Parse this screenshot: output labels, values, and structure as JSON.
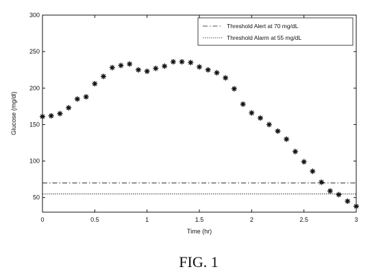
{
  "chart_data": {
    "type": "scatter",
    "title": "",
    "xlabel": "Time (hr)",
    "ylabel": "Glucose (mg/dl)",
    "xlim": [
      0,
      3
    ],
    "ylim": [
      30,
      300
    ],
    "xticks": [
      0,
      0.5,
      1,
      1.5,
      2,
      2.5,
      3
    ],
    "xtick_labels": [
      "0",
      "0.5",
      "1",
      "1.5",
      "2",
      "2.5",
      "3"
    ],
    "yticks": [
      50,
      100,
      150,
      200,
      250,
      300
    ],
    "ytick_labels": [
      "50",
      "100",
      "150",
      "200",
      "250",
      "300"
    ],
    "grid": false,
    "legend_position": "top-right",
    "series": [
      {
        "marker": "asterisk",
        "color": "#111111",
        "x": [
          0,
          0.083,
          0.167,
          0.25,
          0.333,
          0.417,
          0.5,
          0.583,
          0.667,
          0.75,
          0.833,
          0.917,
          1.0,
          1.083,
          1.167,
          1.25,
          1.333,
          1.417,
          1.5,
          1.583,
          1.667,
          1.75,
          1.833,
          1.917,
          2.0,
          2.083,
          2.167,
          2.25,
          2.333,
          2.417,
          2.5,
          2.583,
          2.667,
          2.75,
          2.833,
          2.917,
          3.0
        ],
        "y": [
          161,
          162,
          165,
          173,
          185,
          188,
          206,
          216,
          228,
          231,
          233,
          225,
          223,
          227,
          230,
          236,
          236,
          235,
          229,
          225,
          221,
          214,
          199,
          178,
          166,
          159,
          150,
          141,
          130,
          113,
          99,
          86,
          71,
          59,
          54,
          45,
          38
        ]
      }
    ],
    "threshold_lines": [
      {
        "name": "Threshold Alert at 70 mg/dL",
        "y": 70,
        "style": "dash-dot",
        "color": "#111111"
      },
      {
        "name": "Threshold Alarm at 55 mg/dL",
        "y": 55,
        "style": "dotted",
        "color": "#111111"
      }
    ],
    "legend": [
      {
        "label": "Threshold Alert at 70 mg/dL",
        "style": "dash-dot"
      },
      {
        "label": "Threshold Alarm at 55 mg/dL",
        "style": "dotted"
      }
    ]
  },
  "caption": "FIG. 1"
}
